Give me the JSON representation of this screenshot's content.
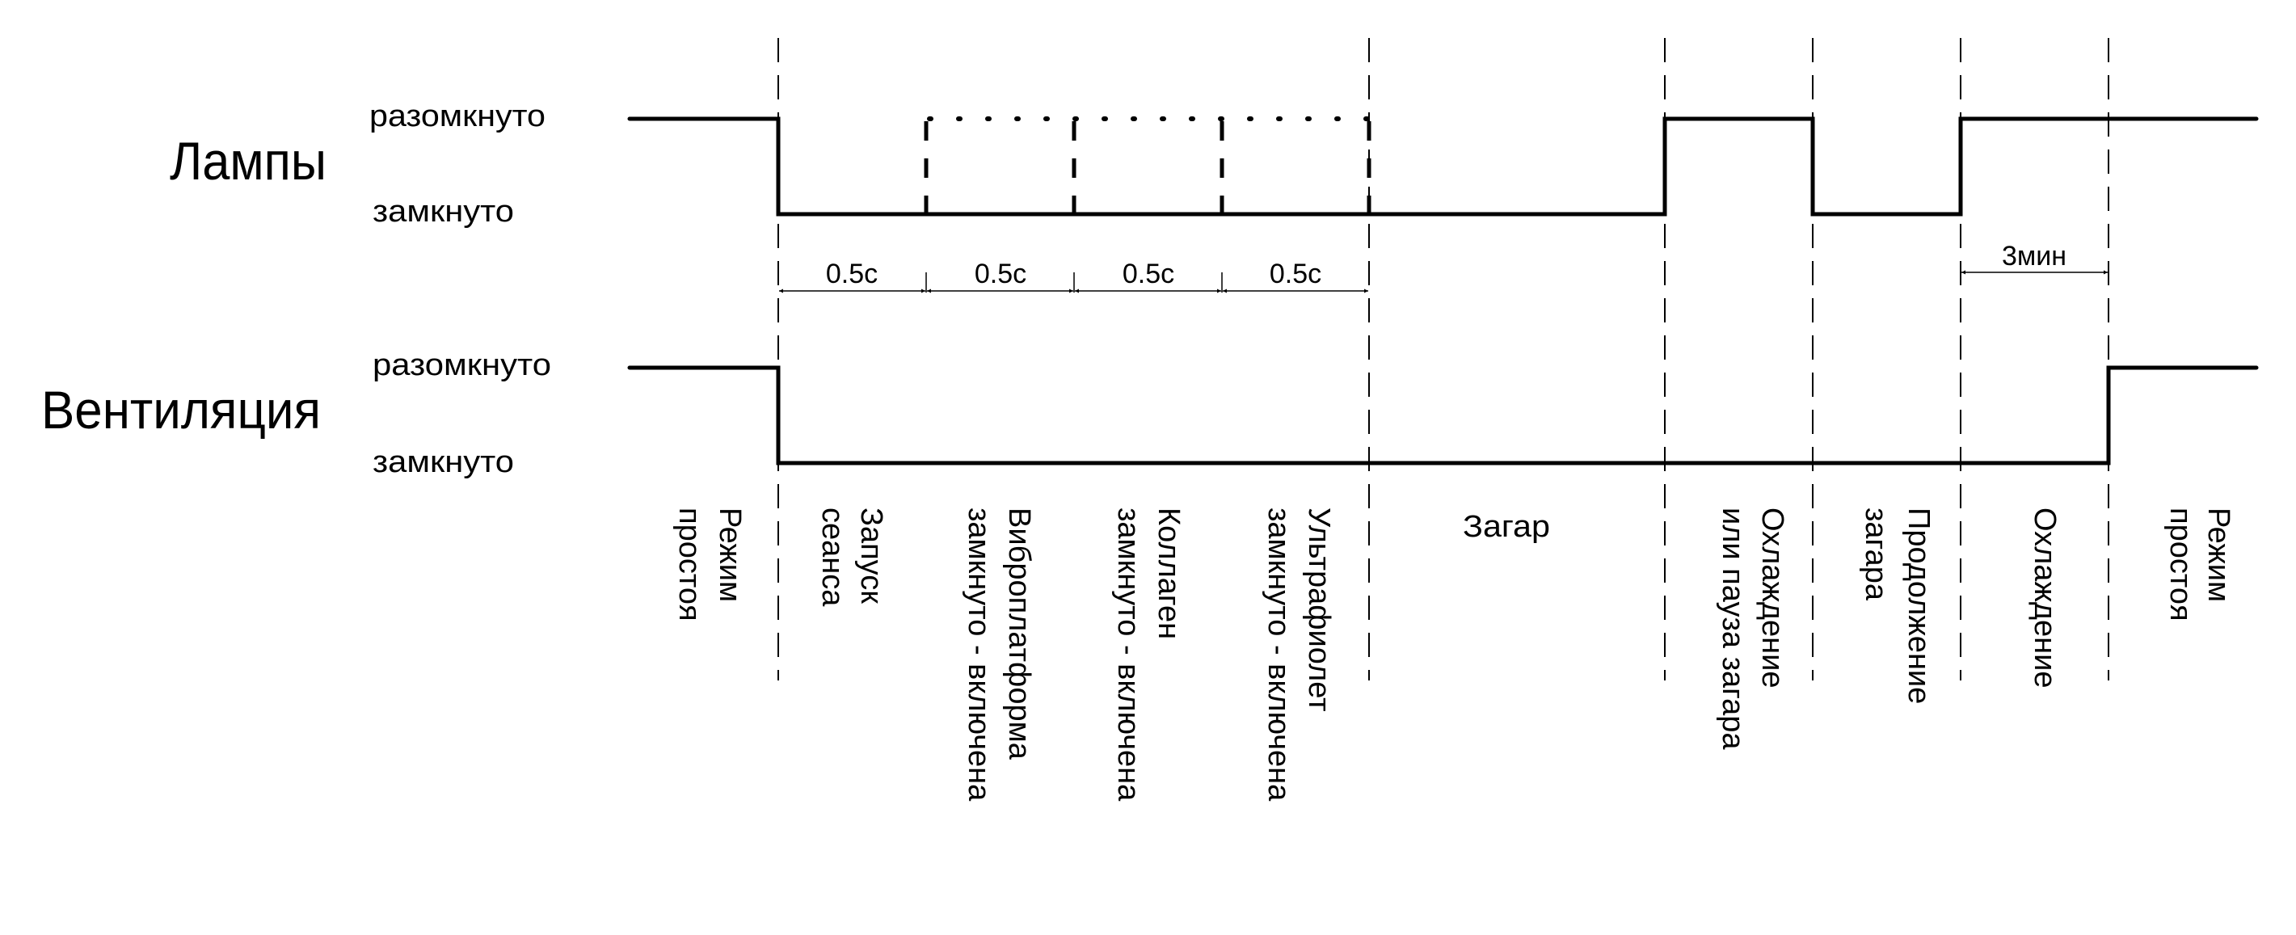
{
  "signals": [
    {
      "name": "Лампы",
      "state_high": "разомкнуто",
      "state_low": "замкнуто"
    },
    {
      "name": "Вентиляция",
      "state_high": "разомкнуто",
      "state_low": "замкнуто"
    }
  ],
  "durations": [
    "0.5с",
    "0.5с",
    "0.5с",
    "0.5с",
    "3мин"
  ],
  "phases": [
    {
      "lines": [
        "Режим",
        "простоя"
      ]
    },
    {
      "lines": [
        "Запуск",
        "сеанса"
      ]
    },
    {
      "lines": [
        "Виброплатформа",
        "замкнуто - включена"
      ]
    },
    {
      "lines": [
        "Коллаген",
        "замкнуто - включена"
      ]
    },
    {
      "lines": [
        "Ультрафиолет",
        "замкнуто - включена"
      ]
    },
    {
      "lines": [
        "Загар"
      ]
    },
    {
      "lines": [
        "Охлаждение",
        "или пауза загара"
      ]
    },
    {
      "lines": [
        "Продолжение",
        "загара"
      ]
    },
    {
      "lines": [
        "Охлаждение"
      ]
    },
    {
      "lines": [
        "Режим",
        "простоя"
      ]
    }
  ],
  "colors": {
    "line": "#000000",
    "background": "#ffffff"
  }
}
